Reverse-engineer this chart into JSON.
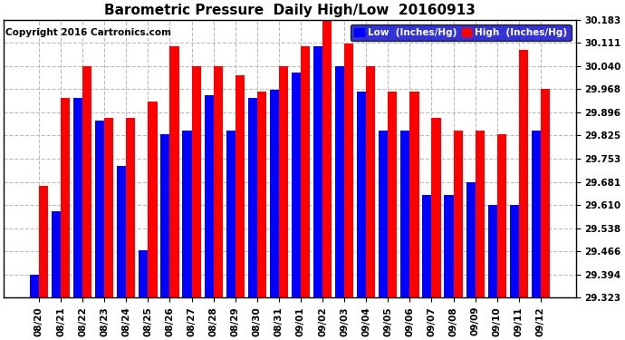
{
  "title": "Barometric Pressure  Daily High/Low  20160913",
  "copyright": "Copyright 2016 Cartronics.com",
  "legend_low": "Low  (Inches/Hg)",
  "legend_high": "High  (Inches/Hg)",
  "dates": [
    "08/20",
    "08/21",
    "08/22",
    "08/23",
    "08/24",
    "08/25",
    "08/26",
    "08/27",
    "08/28",
    "08/29",
    "08/30",
    "08/31",
    "09/01",
    "09/02",
    "09/03",
    "09/04",
    "09/05",
    "09/06",
    "09/07",
    "09/08",
    "09/09",
    "09/10",
    "09/11",
    "09/12"
  ],
  "lows": [
    29.394,
    29.59,
    29.94,
    29.87,
    29.73,
    29.47,
    29.83,
    29.84,
    29.95,
    29.84,
    29.94,
    29.965,
    30.02,
    30.1,
    30.04,
    29.96,
    29.84,
    29.84,
    29.64,
    29.64,
    29.68,
    29.61,
    29.61,
    29.84
  ],
  "highs": [
    29.67,
    29.94,
    30.04,
    29.88,
    29.88,
    29.93,
    30.1,
    30.04,
    30.04,
    30.01,
    29.96,
    30.04,
    30.1,
    30.183,
    30.11,
    30.04,
    29.96,
    29.96,
    29.88,
    29.84,
    29.84,
    29.83,
    30.09,
    29.97
  ],
  "ylim_min": 29.323,
  "ylim_max": 30.183,
  "yticks": [
    29.323,
    29.394,
    29.466,
    29.538,
    29.61,
    29.681,
    29.753,
    29.825,
    29.896,
    29.968,
    30.04,
    30.111,
    30.183
  ],
  "bar_color_low": "#0000ff",
  "bar_color_high": "#ff0000",
  "bg_color": "#ffffff",
  "grid_color": "#bbbbbb",
  "title_fontsize": 11,
  "copyright_fontsize": 7.5,
  "tick_fontsize": 7.5
}
